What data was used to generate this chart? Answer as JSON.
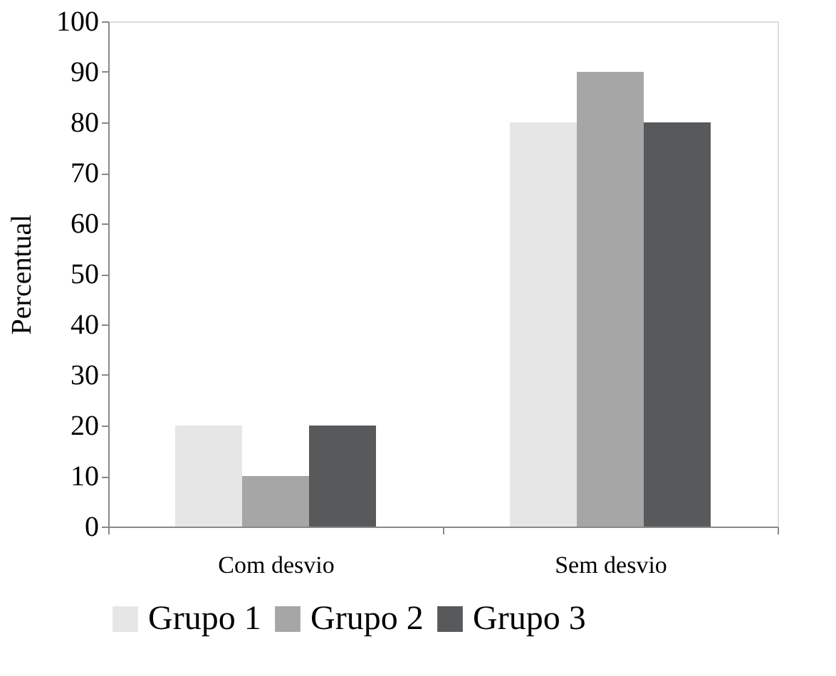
{
  "chart_data": {
    "type": "bar",
    "ylabel": "Percentual",
    "categories": [
      "Com desvio",
      "Sem desvio"
    ],
    "series": [
      {
        "name": "Grupo 1",
        "color": "#e6e6e6",
        "values": [
          20,
          80
        ]
      },
      {
        "name": "Grupo 2",
        "color": "#a6a6a6",
        "values": [
          10,
          90
        ]
      },
      {
        "name": "Grupo 3",
        "color": "#58595b",
        "values": [
          20,
          80
        ]
      }
    ],
    "ylim": [
      0,
      100
    ],
    "yticks": [
      0,
      10,
      20,
      30,
      40,
      50,
      60,
      70,
      80,
      90,
      100
    ],
    "grid": false,
    "legend": "bottom"
  }
}
